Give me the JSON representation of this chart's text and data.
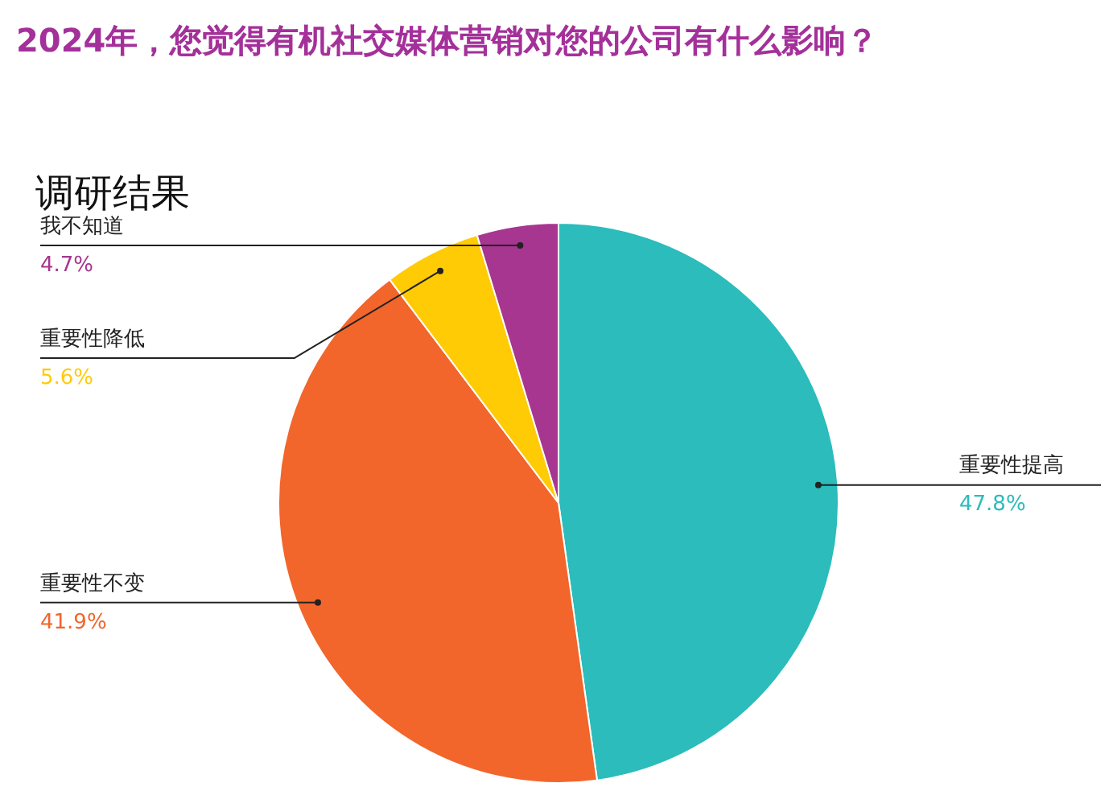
{
  "chart_data": {
    "type": "pie",
    "title": "2024年，您觉得有机社交媒体营销对您的公司有什么影响？",
    "subtitle": "调研结果",
    "categories": [
      "重要性提高",
      "重要性不变",
      "重要性降低",
      "我不知道"
    ],
    "values": [
      47.8,
      41.9,
      5.6,
      4.7
    ],
    "value_labels": [
      "47.8%",
      "41.9%",
      "5.6%",
      "4.7%"
    ],
    "colors": [
      "#2bbcbb",
      "#f2652b",
      "#ffcb05",
      "#a6368f"
    ],
    "legend": false
  }
}
